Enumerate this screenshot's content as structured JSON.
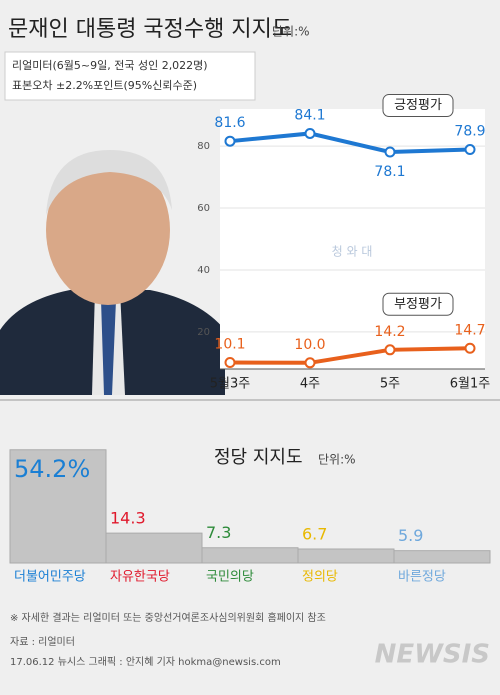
{
  "header": {
    "title": "문재인 대통령 국정수행 지지도",
    "unit": "단위:%",
    "notes": [
      "리얼미터(6월5~9일, 전국 성인 2,022명)",
      "표본오차 ±2.2%포인트(95%신뢰수준)"
    ]
  },
  "chart_data": [
    {
      "type": "line",
      "categories": [
        "5월3주",
        "4주",
        "5주",
        "6월1주"
      ],
      "series": [
        {
          "name": "긍정평가",
          "color": "#1e78d2",
          "values": [
            81.6,
            84.1,
            78.1,
            78.9
          ],
          "value_labels": [
            "81.6",
            "84.1",
            "78.1",
            "78.9"
          ]
        },
        {
          "name": "부정평가",
          "color": "#e8601c",
          "values": [
            10.1,
            10.0,
            14.2,
            14.7
          ],
          "value_labels": [
            "10.1",
            "10.0",
            "14.2",
            "14.7"
          ]
        }
      ],
      "ylim": [
        8,
        92
      ],
      "yticks": [
        20,
        40,
        60,
        80
      ],
      "grid": true,
      "annotations": [
        "청 와 대"
      ]
    },
    {
      "type": "bar",
      "title": "정당 지지도",
      "unit": "단위:%",
      "categories": [
        "더불어민주당",
        "자유한국당",
        "국민의당",
        "정의당",
        "바른정당"
      ],
      "values": [
        54.2,
        14.3,
        7.3,
        6.7,
        5.9
      ],
      "value_labels": [
        "54.2%",
        "14.3",
        "7.3",
        "6.7",
        "5.9"
      ],
      "color": "#c4c4c4",
      "label_colors": [
        "#1a7fd4",
        "#e0192c",
        "#2e8b3a",
        "#e8b800",
        "#6fa8dc"
      ],
      "ylim": [
        0,
        56
      ]
    }
  ],
  "footer": {
    "note": "※ 자세한 결과는 리얼미터 또는 중앙선거여론조사심의위원회 홈페이지 참조",
    "source": "자료 : 리얼미터",
    "credit": "17.06.12 뉴시스 그래픽 : 안지혜 기자 hokma@newsis.com",
    "logo": "NEWSIS"
  }
}
